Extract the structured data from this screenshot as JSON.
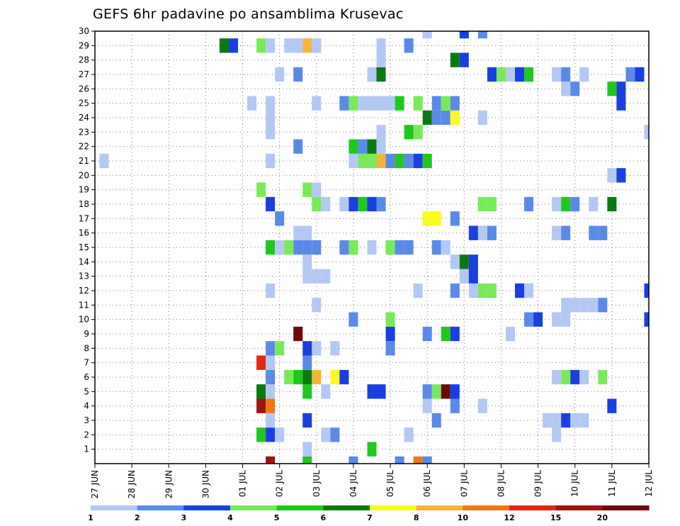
{
  "chart_data": {
    "type": "heatmap",
    "title": "GEFS 6hr padavine po ansamblima Krusevac",
    "x_tick_labels": [
      "27 JUN",
      "28 JUN",
      "29 JUN",
      "30 JUN",
      "01 JUL",
      "02 JUL",
      "03 JUL",
      "04 JUL",
      "05 JUL",
      "06 JUL",
      "07 JUL",
      "08 JUL",
      "09 JUL",
      "10 JUL",
      "11 JUL",
      "12 JUL"
    ],
    "y_tick_labels": [
      "1",
      "2",
      "3",
      "4",
      "5",
      "6",
      "7",
      "8",
      "9",
      "10",
      "11",
      "12",
      "13",
      "14",
      "15",
      "16",
      "17",
      "18",
      "19",
      "20",
      "21",
      "22",
      "23",
      "24",
      "25",
      "26",
      "27",
      "28",
      "29",
      "30"
    ],
    "x_range_steps": [
      0,
      60
    ],
    "y_range_members": [
      0,
      30
    ],
    "grid": true,
    "colorbar": {
      "tick_labels": [
        "1",
        "2",
        "3",
        "4",
        "5",
        "6",
        "7",
        "8",
        "10",
        "12",
        "15",
        "20"
      ],
      "colors": [
        "#b4c8f4",
        "#5a8ae8",
        "#1a3fe0",
        "#78ea5a",
        "#1ec81e",
        "#0a7a10",
        "#fafa1e",
        "#f5b43c",
        "#f07814",
        "#e02814",
        "#a01410",
        "#6e0a0a"
      ]
    },
    "cells": [
      {
        "m": 0,
        "t": 19,
        "c": 10
      },
      {
        "m": 0,
        "t": 23,
        "c": 4
      },
      {
        "m": 0,
        "t": 28,
        "c": 1
      },
      {
        "m": 0,
        "t": 33,
        "c": 1
      },
      {
        "m": 0,
        "t": 35,
        "c": 8
      },
      {
        "m": 0,
        "t": 36,
        "c": 1
      },
      {
        "m": 1,
        "t": 23,
        "c": 0
      },
      {
        "m": 1,
        "t": 30,
        "c": 4
      },
      {
        "m": 2,
        "t": 18,
        "c": 4
      },
      {
        "m": 2,
        "t": 19,
        "c": 2
      },
      {
        "m": 2,
        "t": 20,
        "c": 0
      },
      {
        "m": 2,
        "t": 25,
        "c": 0
      },
      {
        "m": 2,
        "t": 26,
        "c": 1
      },
      {
        "m": 2,
        "t": 34,
        "c": 0
      },
      {
        "m": 2,
        "t": 50,
        "c": 0
      },
      {
        "m": 3,
        "t": 19,
        "c": 0
      },
      {
        "m": 3,
        "t": 23,
        "c": 2
      },
      {
        "m": 3,
        "t": 37,
        "c": 1
      },
      {
        "m": 3,
        "t": 49,
        "c": 0
      },
      {
        "m": 3,
        "t": 50,
        "c": 0
      },
      {
        "m": 3,
        "t": 51,
        "c": 2
      },
      {
        "m": 3,
        "t": 52,
        "c": 0
      },
      {
        "m": 3,
        "t": 53,
        "c": 0
      },
      {
        "m": 4,
        "t": 18,
        "c": 10
      },
      {
        "m": 4,
        "t": 19,
        "c": 8
      },
      {
        "m": 4,
        "t": 36,
        "c": 0
      },
      {
        "m": 4,
        "t": 39,
        "c": 1
      },
      {
        "m": 4,
        "t": 42,
        "c": 0
      },
      {
        "m": 4,
        "t": 56,
        "c": 2
      },
      {
        "m": 5,
        "t": 18,
        "c": 5
      },
      {
        "m": 5,
        "t": 19,
        "c": 0
      },
      {
        "m": 5,
        "t": 23,
        "c": 4
      },
      {
        "m": 5,
        "t": 25,
        "c": 0
      },
      {
        "m": 5,
        "t": 30,
        "c": 2
      },
      {
        "m": 5,
        "t": 31,
        "c": 2
      },
      {
        "m": 5,
        "t": 36,
        "c": 1
      },
      {
        "m": 5,
        "t": 37,
        "c": 3
      },
      {
        "m": 5,
        "t": 38,
        "c": 11
      },
      {
        "m": 5,
        "t": 39,
        "c": 2
      },
      {
        "m": 6,
        "t": 19,
        "c": 1
      },
      {
        "m": 6,
        "t": 21,
        "c": 3
      },
      {
        "m": 6,
        "t": 22,
        "c": 4
      },
      {
        "m": 6,
        "t": 23,
        "c": 5
      },
      {
        "m": 6,
        "t": 24,
        "c": 7
      },
      {
        "m": 6,
        "t": 26,
        "c": 6
      },
      {
        "m": 6,
        "t": 27,
        "c": 2
      },
      {
        "m": 6,
        "t": 50,
        "c": 0
      },
      {
        "m": 6,
        "t": 51,
        "c": 3
      },
      {
        "m": 6,
        "t": 52,
        "c": 2
      },
      {
        "m": 6,
        "t": 53,
        "c": 0
      },
      {
        "m": 6,
        "t": 55,
        "c": 3
      },
      {
        "m": 7,
        "t": 18,
        "c": 9
      },
      {
        "m": 7,
        "t": 19,
        "c": 0
      },
      {
        "m": 7,
        "t": 23,
        "c": 1
      },
      {
        "m": 8,
        "t": 19,
        "c": 1
      },
      {
        "m": 8,
        "t": 20,
        "c": 3
      },
      {
        "m": 8,
        "t": 23,
        "c": 2
      },
      {
        "m": 8,
        "t": 24,
        "c": 0
      },
      {
        "m": 8,
        "t": 26,
        "c": 0
      },
      {
        "m": 8,
        "t": 32,
        "c": 1
      },
      {
        "m": 9,
        "t": 22,
        "c": 11
      },
      {
        "m": 9,
        "t": 32,
        "c": 2
      },
      {
        "m": 9,
        "t": 36,
        "c": 1
      },
      {
        "m": 9,
        "t": 38,
        "c": 4
      },
      {
        "m": 9,
        "t": 39,
        "c": 2
      },
      {
        "m": 9,
        "t": 45,
        "c": 0
      },
      {
        "m": 10,
        "t": 28,
        "c": 1
      },
      {
        "m": 10,
        "t": 32,
        "c": 3
      },
      {
        "m": 10,
        "t": 47,
        "c": 1
      },
      {
        "m": 10,
        "t": 48,
        "c": 2
      },
      {
        "m": 10,
        "t": 50,
        "c": 0
      },
      {
        "m": 10,
        "t": 51,
        "c": 0
      },
      {
        "m": 10,
        "t": 60,
        "c": 2
      },
      {
        "m": 11,
        "t": 24,
        "c": 0
      },
      {
        "m": 11,
        "t": 51,
        "c": 0
      },
      {
        "m": 11,
        "t": 52,
        "c": 0
      },
      {
        "m": 11,
        "t": 53,
        "c": 0
      },
      {
        "m": 11,
        "t": 54,
        "c": 0
      },
      {
        "m": 11,
        "t": 55,
        "c": 1
      },
      {
        "m": 12,
        "t": 19,
        "c": 0
      },
      {
        "m": 12,
        "t": 35,
        "c": 0
      },
      {
        "m": 12,
        "t": 39,
        "c": 1
      },
      {
        "m": 12,
        "t": 41,
        "c": 0
      },
      {
        "m": 12,
        "t": 42,
        "c": 3
      },
      {
        "m": 12,
        "t": 43,
        "c": 3
      },
      {
        "m": 12,
        "t": 46,
        "c": 2
      },
      {
        "m": 12,
        "t": 47,
        "c": 0
      },
      {
        "m": 12,
        "t": 60,
        "c": 2
      },
      {
        "m": 13,
        "t": 23,
        "c": 0
      },
      {
        "m": 13,
        "t": 24,
        "c": 0
      },
      {
        "m": 13,
        "t": 25,
        "c": 0
      },
      {
        "m": 13,
        "t": 40,
        "c": 0
      },
      {
        "m": 13,
        "t": 41,
        "c": 2
      },
      {
        "m": 14,
        "t": 23,
        "c": 0
      },
      {
        "m": 14,
        "t": 39,
        "c": 0
      },
      {
        "m": 14,
        "t": 40,
        "c": 5
      },
      {
        "m": 14,
        "t": 41,
        "c": 2
      },
      {
        "m": 15,
        "t": 19,
        "c": 4
      },
      {
        "m": 15,
        "t": 20,
        "c": 0
      },
      {
        "m": 15,
        "t": 21,
        "c": 3
      },
      {
        "m": 15,
        "t": 22,
        "c": 1
      },
      {
        "m": 15,
        "t": 23,
        "c": 1
      },
      {
        "m": 15,
        "t": 24,
        "c": 1
      },
      {
        "m": 15,
        "t": 27,
        "c": 1
      },
      {
        "m": 15,
        "t": 28,
        "c": 3
      },
      {
        "m": 15,
        "t": 30,
        "c": 0
      },
      {
        "m": 15,
        "t": 32,
        "c": 3
      },
      {
        "m": 15,
        "t": 33,
        "c": 1
      },
      {
        "m": 15,
        "t": 34,
        "c": 1
      },
      {
        "m": 15,
        "t": 37,
        "c": 1
      },
      {
        "m": 15,
        "t": 38,
        "c": 0
      },
      {
        "m": 16,
        "t": 22,
        "c": 0
      },
      {
        "m": 16,
        "t": 23,
        "c": 0
      },
      {
        "m": 16,
        "t": 41,
        "c": 2
      },
      {
        "m": 16,
        "t": 42,
        "c": 0
      },
      {
        "m": 16,
        "t": 43,
        "c": 1
      },
      {
        "m": 16,
        "t": 50,
        "c": 0
      },
      {
        "m": 16,
        "t": 51,
        "c": 1
      },
      {
        "m": 16,
        "t": 54,
        "c": 1
      },
      {
        "m": 16,
        "t": 55,
        "c": 1
      },
      {
        "m": 17,
        "t": 20,
        "c": 1
      },
      {
        "m": 17,
        "t": 36,
        "c": 6
      },
      {
        "m": 17,
        "t": 37,
        "c": 6
      },
      {
        "m": 17,
        "t": 39,
        "c": 1
      },
      {
        "m": 18,
        "t": 19,
        "c": 2
      },
      {
        "m": 18,
        "t": 24,
        "c": 3
      },
      {
        "m": 18,
        "t": 25,
        "c": 0
      },
      {
        "m": 18,
        "t": 27,
        "c": 0
      },
      {
        "m": 18,
        "t": 28,
        "c": 2
      },
      {
        "m": 18,
        "t": 29,
        "c": 4
      },
      {
        "m": 18,
        "t": 30,
        "c": 2
      },
      {
        "m": 18,
        "t": 31,
        "c": 1
      },
      {
        "m": 18,
        "t": 42,
        "c": 3
      },
      {
        "m": 18,
        "t": 43,
        "c": 3
      },
      {
        "m": 18,
        "t": 47,
        "c": 1
      },
      {
        "m": 18,
        "t": 50,
        "c": 0
      },
      {
        "m": 18,
        "t": 51,
        "c": 4
      },
      {
        "m": 18,
        "t": 52,
        "c": 1
      },
      {
        "m": 18,
        "t": 54,
        "c": 0
      },
      {
        "m": 18,
        "t": 56,
        "c": 5
      },
      {
        "m": 19,
        "t": 18,
        "c": 3
      },
      {
        "m": 19,
        "t": 23,
        "c": 3
      },
      {
        "m": 19,
        "t": 24,
        "c": 0
      },
      {
        "m": 20,
        "t": 56,
        "c": 0
      },
      {
        "m": 20,
        "t": 57,
        "c": 2
      },
      {
        "m": 21,
        "t": 1,
        "c": 0
      },
      {
        "m": 21,
        "t": 19,
        "c": 0
      },
      {
        "m": 21,
        "t": 28,
        "c": 0
      },
      {
        "m": 21,
        "t": 29,
        "c": 3
      },
      {
        "m": 21,
        "t": 30,
        "c": 3
      },
      {
        "m": 21,
        "t": 31,
        "c": 7
      },
      {
        "m": 21,
        "t": 32,
        "c": 1
      },
      {
        "m": 21,
        "t": 33,
        "c": 4
      },
      {
        "m": 21,
        "t": 34,
        "c": 1
      },
      {
        "m": 21,
        "t": 35,
        "c": 2
      },
      {
        "m": 21,
        "t": 36,
        "c": 4
      },
      {
        "m": 22,
        "t": 22,
        "c": 1
      },
      {
        "m": 22,
        "t": 28,
        "c": 4
      },
      {
        "m": 22,
        "t": 29,
        "c": 1
      },
      {
        "m": 22,
        "t": 30,
        "c": 5
      },
      {
        "m": 22,
        "t": 31,
        "c": 0
      },
      {
        "m": 23,
        "t": 19,
        "c": 0
      },
      {
        "m": 23,
        "t": 31,
        "c": 0
      },
      {
        "m": 23,
        "t": 34,
        "c": 4
      },
      {
        "m": 23,
        "t": 35,
        "c": 3
      },
      {
        "m": 23,
        "t": 60,
        "c": 0
      },
      {
        "m": 24,
        "t": 19,
        "c": 0
      },
      {
        "m": 24,
        "t": 36,
        "c": 5
      },
      {
        "m": 24,
        "t": 37,
        "c": 1
      },
      {
        "m": 24,
        "t": 38,
        "c": 1
      },
      {
        "m": 24,
        "t": 39,
        "c": 6
      },
      {
        "m": 24,
        "t": 42,
        "c": 0
      },
      {
        "m": 25,
        "t": 17,
        "c": 0
      },
      {
        "m": 25,
        "t": 19,
        "c": 0
      },
      {
        "m": 25,
        "t": 24,
        "c": 0
      },
      {
        "m": 25,
        "t": 27,
        "c": 1
      },
      {
        "m": 25,
        "t": 28,
        "c": 3
      },
      {
        "m": 25,
        "t": 29,
        "c": 0
      },
      {
        "m": 25,
        "t": 30,
        "c": 0
      },
      {
        "m": 25,
        "t": 31,
        "c": 0
      },
      {
        "m": 25,
        "t": 32,
        "c": 0
      },
      {
        "m": 25,
        "t": 33,
        "c": 4
      },
      {
        "m": 25,
        "t": 35,
        "c": 3
      },
      {
        "m": 25,
        "t": 37,
        "c": 1
      },
      {
        "m": 25,
        "t": 38,
        "c": 3
      },
      {
        "m": 25,
        "t": 39,
        "c": 1
      },
      {
        "m": 25,
        "t": 57,
        "c": 2
      },
      {
        "m": 26,
        "t": 51,
        "c": 0
      },
      {
        "m": 26,
        "t": 52,
        "c": 1
      },
      {
        "m": 26,
        "t": 56,
        "c": 4
      },
      {
        "m": 26,
        "t": 57,
        "c": 2
      },
      {
        "m": 27,
        "t": 20,
        "c": 0
      },
      {
        "m": 27,
        "t": 22,
        "c": 1
      },
      {
        "m": 27,
        "t": 30,
        "c": 0
      },
      {
        "m": 27,
        "t": 31,
        "c": 5
      },
      {
        "m": 27,
        "t": 43,
        "c": 2
      },
      {
        "m": 27,
        "t": 44,
        "c": 3
      },
      {
        "m": 27,
        "t": 45,
        "c": 0
      },
      {
        "m": 27,
        "t": 46,
        "c": 2
      },
      {
        "m": 27,
        "t": 47,
        "c": 4
      },
      {
        "m": 27,
        "t": 50,
        "c": 0
      },
      {
        "m": 27,
        "t": 51,
        "c": 1
      },
      {
        "m": 27,
        "t": 53,
        "c": 0
      },
      {
        "m": 27,
        "t": 58,
        "c": 1
      },
      {
        "m": 27,
        "t": 59,
        "c": 2
      },
      {
        "m": 28,
        "t": 31,
        "c": 0
      },
      {
        "m": 28,
        "t": 39,
        "c": 5
      },
      {
        "m": 28,
        "t": 40,
        "c": 2
      },
      {
        "m": 29,
        "t": 14,
        "c": 5
      },
      {
        "m": 29,
        "t": 15,
        "c": 2
      },
      {
        "m": 29,
        "t": 18,
        "c": 3
      },
      {
        "m": 29,
        "t": 19,
        "c": 0
      },
      {
        "m": 29,
        "t": 21,
        "c": 0
      },
      {
        "m": 29,
        "t": 22,
        "c": 0
      },
      {
        "m": 29,
        "t": 23,
        "c": 7
      },
      {
        "m": 29,
        "t": 24,
        "c": 0
      },
      {
        "m": 29,
        "t": 31,
        "c": 0
      },
      {
        "m": 29,
        "t": 34,
        "c": 1
      },
      {
        "m": 30,
        "t": 36,
        "c": 0
      },
      {
        "m": 30,
        "t": 40,
        "c": 2
      },
      {
        "m": 30,
        "t": 42,
        "c": 1
      }
    ]
  }
}
